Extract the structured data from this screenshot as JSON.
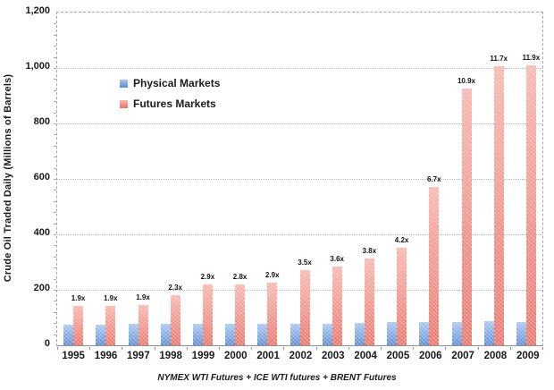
{
  "chart_data": {
    "type": "bar",
    "title": "",
    "ylabel": "Crude Oil Traded Daily (Millions of Barrels)",
    "xlabel": "NYMEX WTI Futures + ICE WTI futures + BRENT Futures",
    "ylim": [
      0,
      1200
    ],
    "yticks": [
      0,
      200,
      400,
      600,
      800,
      1000,
      1200
    ],
    "ytick_labels": [
      "0",
      "200",
      "400",
      "600",
      "800",
      "1,000",
      "1,200"
    ],
    "categories": [
      "1995",
      "1996",
      "1997",
      "1998",
      "1999",
      "2000",
      "2001",
      "2002",
      "2003",
      "2004",
      "2005",
      "2006",
      "2007",
      "2008",
      "2009"
    ],
    "series": [
      {
        "name": "Physical Markets",
        "color": "#5b8bd0",
        "color_light": "#a9c7f2",
        "values": [
          75,
          75,
          77,
          78,
          76,
          78,
          78,
          77,
          79,
          82,
          84,
          85,
          85,
          86,
          85
        ]
      },
      {
        "name": "Futures Markets",
        "color": "#e8746a",
        "color_light": "#f9b6ae",
        "values": [
          142,
          142,
          146,
          180,
          220,
          218,
          226,
          270,
          284,
          312,
          353,
          570,
          927,
          1005,
          1010
        ],
        "bar_labels": [
          "1.9x",
          "1.9x",
          "1.9x",
          "2.3x",
          "2.9x",
          "2.8x",
          "2.9x",
          "3.5x",
          "3.6x",
          "3.8x",
          "4.2x",
          "6.7x",
          "10.9x",
          "11.7x",
          "11.9x"
        ]
      }
    ],
    "grid": "horizontal-dotted",
    "legend_position": "inside-upper-left"
  }
}
